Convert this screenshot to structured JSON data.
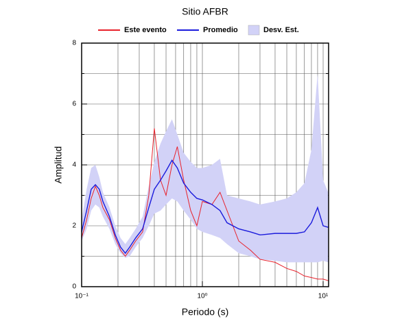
{
  "chart_data": {
    "type": "line",
    "title": "Sitio AFBR",
    "xlabel": "Periodo (s)",
    "ylabel": "Amplitud",
    "xscale": "log",
    "grid": true,
    "legend": "top",
    "xlim": [
      0.1,
      11.1
    ],
    "ylim": [
      0,
      8
    ],
    "xticks": [
      {
        "value": 0.1,
        "label": "10⁻¹"
      },
      {
        "value": 1,
        "label": "10⁰"
      },
      {
        "value": 10,
        "label": "10¹"
      }
    ],
    "yticks": [
      0,
      2,
      4,
      6,
      8
    ],
    "x": [
      0.1,
      0.11,
      0.12,
      0.13,
      0.14,
      0.15,
      0.17,
      0.19,
      0.21,
      0.23,
      0.25,
      0.28,
      0.32,
      0.36,
      0.4,
      0.45,
      0.5,
      0.56,
      0.62,
      0.7,
      0.8,
      0.9,
      1.0,
      1.2,
      1.4,
      1.6,
      2.0,
      2.5,
      3.0,
      4.0,
      5.0,
      6.0,
      7.0,
      8.0,
      9.0,
      10.0,
      11.0
    ],
    "series": [
      {
        "name": "Desv. Est.",
        "kind": "band",
        "color": "#d2d2f7",
        "upper": [
          2.2,
          3.2,
          3.9,
          4.0,
          3.6,
          3.1,
          2.6,
          2.0,
          1.6,
          1.4,
          1.6,
          1.9,
          2.3,
          3.3,
          4.1,
          4.7,
          5.1,
          5.5,
          5.0,
          4.4,
          4.1,
          3.9,
          3.9,
          4.0,
          4.2,
          3.0,
          2.9,
          2.8,
          2.7,
          2.8,
          2.9,
          3.1,
          3.4,
          4.5,
          7.0,
          3.5,
          3.1
        ],
        "lower": [
          1.5,
          1.9,
          2.5,
          2.7,
          2.6,
          2.3,
          1.9,
          1.4,
          1.1,
          0.95,
          1.0,
          1.3,
          1.6,
          2.0,
          2.4,
          2.5,
          2.7,
          2.9,
          2.8,
          2.5,
          2.2,
          1.9,
          1.8,
          1.7,
          1.6,
          1.4,
          1.1,
          1.0,
          0.9,
          0.85,
          0.8,
          0.8,
          0.8,
          0.8,
          0.8,
          0.85,
          0.8
        ]
      },
      {
        "name": "Este evento",
        "color": "#e8202a",
        "values": [
          1.6,
          2.2,
          2.9,
          3.3,
          3.0,
          2.6,
          2.2,
          1.6,
          1.2,
          1.0,
          1.2,
          1.5,
          1.8,
          3.0,
          5.2,
          3.5,
          3.0,
          4.0,
          4.6,
          3.5,
          2.5,
          2.0,
          2.8,
          2.7,
          3.1,
          2.5,
          1.5,
          1.2,
          0.9,
          0.8,
          0.6,
          0.5,
          0.35,
          0.3,
          0.25,
          0.25,
          0.2
        ]
      },
      {
        "name": "Promedio",
        "color": "#1a1adc",
        "values": [
          1.8,
          2.5,
          3.2,
          3.35,
          3.2,
          2.8,
          2.3,
          1.7,
          1.3,
          1.1,
          1.3,
          1.6,
          1.9,
          2.6,
          3.2,
          3.5,
          3.8,
          4.15,
          3.9,
          3.4,
          3.1,
          2.9,
          2.85,
          2.7,
          2.5,
          2.1,
          1.9,
          1.8,
          1.7,
          1.75,
          1.75,
          1.75,
          1.8,
          2.1,
          2.6,
          2.0,
          1.95
        ]
      }
    ]
  }
}
